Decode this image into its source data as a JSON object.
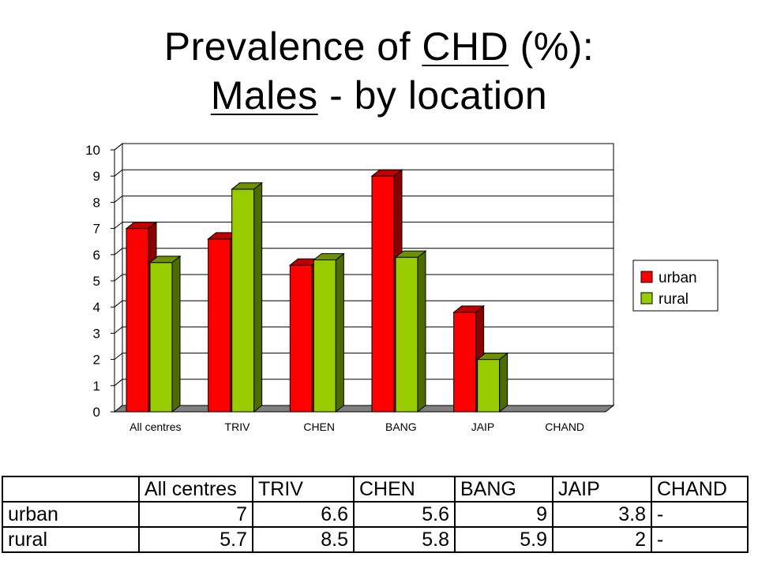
{
  "title": {
    "line1_prefix": "Prevalence of ",
    "line1_underlined": "CHD",
    "line1_suffix": " (%):",
    "line2_underlined": "Males",
    "line2_suffix": " - by location"
  },
  "colors": {
    "urban": "#ff0000",
    "urban_side": "#8b0000",
    "urban_top": "#c00000",
    "rural": "#99cc00",
    "rural_side": "#4d6b00",
    "rural_top": "#6f9000",
    "grid": "#000000",
    "floor": "#808080"
  },
  "chart_data": {
    "type": "bar",
    "style": "3d-clustered-column",
    "categories": [
      "All centres",
      "TRIV",
      "CHEN",
      "BANG",
      "JAIP",
      "CHAND"
    ],
    "series": [
      {
        "name": "urban",
        "values": [
          7,
          6.6,
          5.6,
          9,
          3.8,
          null
        ]
      },
      {
        "name": "rural",
        "values": [
          5.7,
          8.5,
          5.8,
          5.9,
          2,
          null
        ]
      }
    ],
    "ylim": [
      0,
      10
    ],
    "yticks": [
      0,
      1,
      2,
      3,
      4,
      5,
      6,
      7,
      8,
      9,
      10
    ],
    "grid": true,
    "legend_position": "right"
  },
  "table": {
    "header": [
      "",
      "All centres",
      "TRIV",
      "CHEN",
      "BANG",
      "JAIP",
      "CHAND"
    ],
    "rows": [
      {
        "label": "urban",
        "cells": [
          "7",
          "6.6",
          "5.6",
          "9",
          "3.8",
          "-"
        ]
      },
      {
        "label": "rural",
        "cells": [
          "5.7",
          "8.5",
          "5.8",
          "5.9",
          "2",
          "-"
        ]
      }
    ]
  }
}
